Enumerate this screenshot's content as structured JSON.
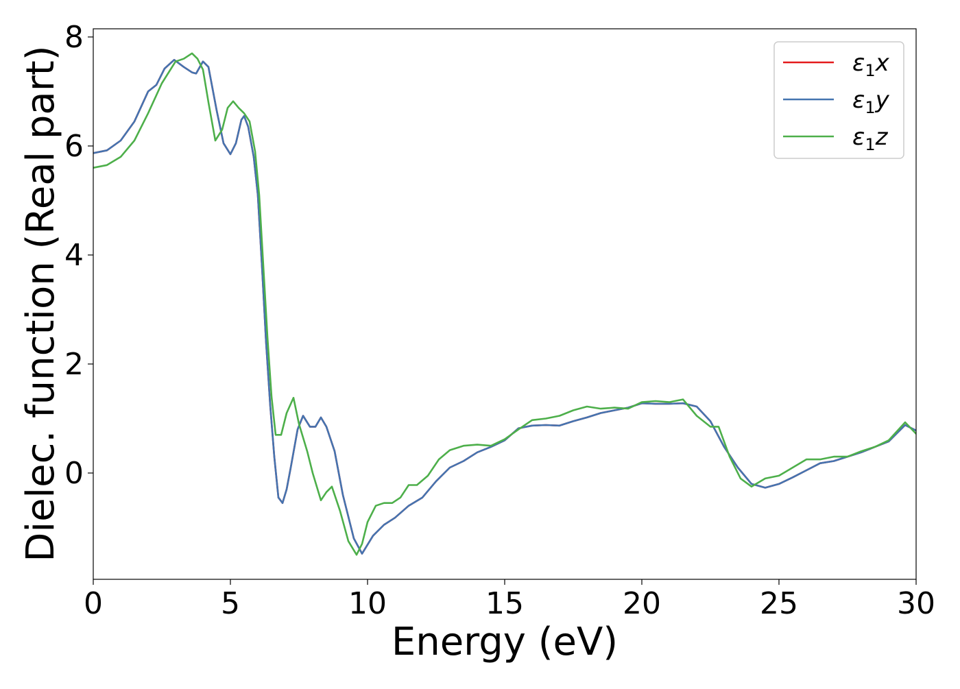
{
  "chart_data": {
    "type": "line",
    "title": "",
    "xlabel": "Energy (eV)",
    "ylabel": "Dielec. function (Real part)",
    "xlim": [
      0,
      30
    ],
    "ylim": [
      -1.95,
      8.15
    ],
    "xticks": [
      0,
      5,
      10,
      15,
      20,
      25,
      30
    ],
    "yticks": [
      0,
      2,
      4,
      6,
      8
    ],
    "grid": false,
    "legend_position": "top-right",
    "series": [
      {
        "name": "ε₁x",
        "legend": {
          "base": "ε",
          "sub": "1",
          "axis": "x"
        },
        "color": "#e41a1c",
        "x": [
          0,
          0.5,
          1,
          1.5,
          2,
          2.3,
          2.6,
          2.95,
          3.3,
          3.6,
          3.75,
          4.0,
          4.2,
          4.5,
          4.75,
          5.0,
          5.2,
          5.4,
          5.5,
          5.65,
          5.85,
          6.0,
          6.15,
          6.3,
          6.45,
          6.6,
          6.75,
          6.9,
          7.05,
          7.2,
          7.45,
          7.65,
          7.9,
          8.1,
          8.3,
          8.5,
          8.8,
          9.1,
          9.5,
          9.8,
          10.2,
          10.6,
          11.0,
          11.5,
          12.0,
          12.5,
          13.0,
          13.5,
          14.0,
          14.5,
          15.0,
          15.5,
          16.0,
          16.5,
          17.0,
          17.5,
          18.0,
          18.5,
          19.0,
          19.5,
          20.0,
          20.5,
          21.0,
          21.5,
          22.0,
          22.5,
          23.0,
          23.5,
          24.0,
          24.5,
          25.0,
          25.5,
          26.0,
          26.5,
          27.0,
          27.5,
          28.0,
          28.5,
          29.0,
          29.6,
          30.0
        ],
        "y": [
          5.87,
          5.92,
          6.1,
          6.45,
          7.0,
          7.12,
          7.42,
          7.58,
          7.45,
          7.35,
          7.33,
          7.55,
          7.45,
          6.65,
          6.05,
          5.85,
          6.05,
          6.48,
          6.55,
          6.35,
          5.8,
          5.1,
          3.8,
          2.4,
          1.25,
          0.3,
          -0.45,
          -0.55,
          -0.3,
          0.1,
          0.8,
          1.05,
          0.85,
          0.85,
          1.02,
          0.85,
          0.4,
          -0.4,
          -1.2,
          -1.48,
          -1.15,
          -0.95,
          -0.82,
          -0.6,
          -0.45,
          -0.15,
          0.1,
          0.22,
          0.38,
          0.48,
          0.6,
          0.82,
          0.87,
          0.88,
          0.87,
          0.95,
          1.02,
          1.1,
          1.15,
          1.2,
          1.28,
          1.27,
          1.27,
          1.28,
          1.22,
          0.95,
          0.48,
          0.1,
          -0.2,
          -0.27,
          -0.2,
          -0.08,
          0.05,
          0.18,
          0.22,
          0.3,
          0.38,
          0.48,
          0.58,
          0.88,
          0.78
        ]
      },
      {
        "name": "ε₁y",
        "legend": {
          "base": "ε",
          "sub": "1",
          "axis": "y"
        },
        "color": "#4474b0",
        "x": [
          0,
          0.5,
          1,
          1.5,
          2,
          2.3,
          2.6,
          2.95,
          3.3,
          3.6,
          3.75,
          4.0,
          4.2,
          4.5,
          4.75,
          5.0,
          5.2,
          5.4,
          5.5,
          5.65,
          5.85,
          6.0,
          6.15,
          6.3,
          6.45,
          6.6,
          6.75,
          6.9,
          7.05,
          7.2,
          7.45,
          7.65,
          7.9,
          8.1,
          8.3,
          8.5,
          8.8,
          9.1,
          9.5,
          9.8,
          10.2,
          10.6,
          11.0,
          11.5,
          12.0,
          12.5,
          13.0,
          13.5,
          14.0,
          14.5,
          15.0,
          15.5,
          16.0,
          16.5,
          17.0,
          17.5,
          18.0,
          18.5,
          19.0,
          19.5,
          20.0,
          20.5,
          21.0,
          21.5,
          22.0,
          22.5,
          23.0,
          23.5,
          24.0,
          24.5,
          25.0,
          25.5,
          26.0,
          26.5,
          27.0,
          27.5,
          28.0,
          28.5,
          29.0,
          29.6,
          30.0
        ],
        "y": [
          5.87,
          5.92,
          6.1,
          6.45,
          7.0,
          7.12,
          7.42,
          7.58,
          7.45,
          7.35,
          7.33,
          7.55,
          7.45,
          6.65,
          6.05,
          5.85,
          6.05,
          6.48,
          6.55,
          6.35,
          5.8,
          5.1,
          3.8,
          2.4,
          1.25,
          0.3,
          -0.45,
          -0.55,
          -0.3,
          0.1,
          0.8,
          1.05,
          0.85,
          0.85,
          1.02,
          0.85,
          0.4,
          -0.4,
          -1.2,
          -1.48,
          -1.15,
          -0.95,
          -0.82,
          -0.6,
          -0.45,
          -0.15,
          0.1,
          0.22,
          0.38,
          0.48,
          0.6,
          0.82,
          0.87,
          0.88,
          0.87,
          0.95,
          1.02,
          1.1,
          1.15,
          1.2,
          1.28,
          1.27,
          1.27,
          1.28,
          1.22,
          0.95,
          0.48,
          0.1,
          -0.2,
          -0.27,
          -0.2,
          -0.08,
          0.05,
          0.18,
          0.22,
          0.3,
          0.38,
          0.48,
          0.58,
          0.88,
          0.78
        ]
      },
      {
        "name": "ε₁z",
        "legend": {
          "base": "ε",
          "sub": "1",
          "axis": "z"
        },
        "color": "#4daf4a",
        "x": [
          0,
          0.5,
          1,
          1.5,
          2,
          2.5,
          3.0,
          3.3,
          3.6,
          3.8,
          4.0,
          4.2,
          4.45,
          4.7,
          4.9,
          5.1,
          5.3,
          5.5,
          5.7,
          5.9,
          6.05,
          6.2,
          6.35,
          6.5,
          6.65,
          6.85,
          7.05,
          7.3,
          7.5,
          7.8,
          8.0,
          8.3,
          8.5,
          8.7,
          9.0,
          9.3,
          9.6,
          9.8,
          10.0,
          10.3,
          10.6,
          10.9,
          11.2,
          11.5,
          11.8,
          12.2,
          12.6,
          13.0,
          13.5,
          14.0,
          14.5,
          15.0,
          15.5,
          16.0,
          16.5,
          17.0,
          17.5,
          18.0,
          18.5,
          19.0,
          19.5,
          20.0,
          20.5,
          21.0,
          21.5,
          22.0,
          22.5,
          22.8,
          23.2,
          23.6,
          24.0,
          24.5,
          25.0,
          25.5,
          26.0,
          26.5,
          27.0,
          27.5,
          28.0,
          28.5,
          29.0,
          29.6,
          30.0
        ],
        "y": [
          5.6,
          5.65,
          5.8,
          6.1,
          6.6,
          7.15,
          7.55,
          7.6,
          7.7,
          7.6,
          7.4,
          6.8,
          6.1,
          6.3,
          6.7,
          6.82,
          6.7,
          6.6,
          6.45,
          5.9,
          5.1,
          3.8,
          2.5,
          1.4,
          0.7,
          0.7,
          1.1,
          1.38,
          0.9,
          0.4,
          0.0,
          -0.5,
          -0.35,
          -0.25,
          -0.7,
          -1.25,
          -1.5,
          -1.3,
          -0.9,
          -0.6,
          -0.55,
          -0.55,
          -0.45,
          -0.22,
          -0.22,
          -0.05,
          0.25,
          0.42,
          0.5,
          0.52,
          0.5,
          0.62,
          0.8,
          0.97,
          1.0,
          1.05,
          1.15,
          1.22,
          1.18,
          1.2,
          1.18,
          1.3,
          1.32,
          1.3,
          1.35,
          1.05,
          0.85,
          0.85,
          0.3,
          -0.1,
          -0.25,
          -0.1,
          -0.05,
          0.1,
          0.25,
          0.25,
          0.3,
          0.3,
          0.4,
          0.48,
          0.6,
          0.93,
          0.72
        ]
      }
    ]
  }
}
